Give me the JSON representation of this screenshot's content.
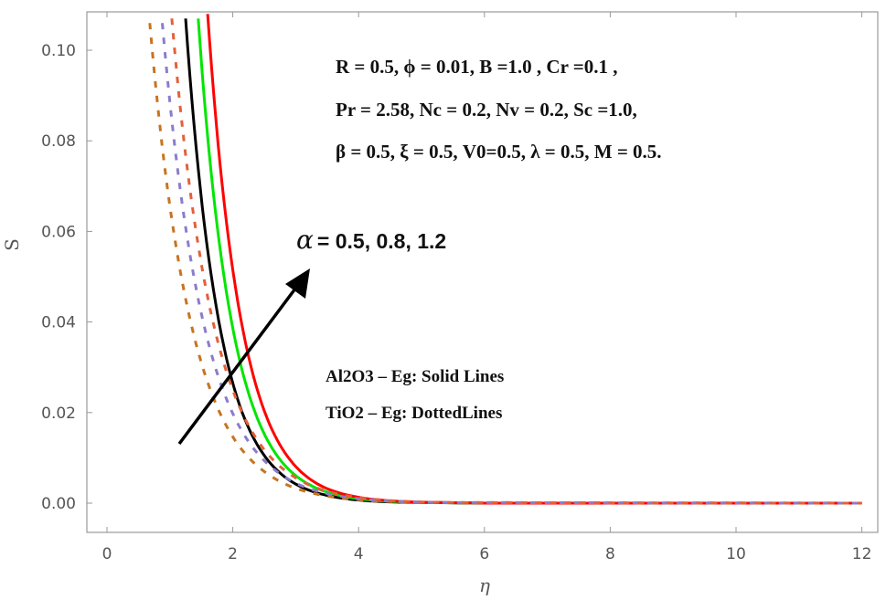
{
  "chart_data": {
    "type": "line",
    "title": "",
    "xlabel": "η",
    "ylabel": "S",
    "xlim": [
      -0.3,
      12.2
    ],
    "ylim": [
      -0.006,
      0.11
    ],
    "xticks": [
      0,
      2,
      4,
      6,
      8,
      10,
      12
    ],
    "xtick_labels": [
      "0",
      "2",
      "4",
      "6",
      "8",
      "10",
      "12"
    ],
    "yticks": [
      0.0,
      0.02,
      0.04,
      0.06,
      0.08,
      0.1
    ],
    "ytick_labels": [
      "0.00",
      "0.02",
      "0.04",
      "0.06",
      "0.08",
      "0.10"
    ],
    "grid": false,
    "series": [
      {
        "name": "Al2O3-Eg α=0.5",
        "style": "solid",
        "color": "#000000",
        "x": [
          1.25,
          1.65,
          2.15,
          2.65,
          3.15,
          3.65,
          4.65,
          6,
          12
        ],
        "y": [
          0.107,
          0.051,
          0.02,
          0.008,
          0.0032,
          0.0013,
          0.0002,
          0,
          0
        ]
      },
      {
        "name": "Al2O3-Eg α=0.8",
        "style": "solid",
        "color": "#00e600",
        "x": [
          1.45,
          1.85,
          2.35,
          2.85,
          3.35,
          3.85,
          4.85,
          6,
          12
        ],
        "y": [
          0.107,
          0.051,
          0.0202,
          0.008,
          0.0032,
          0.0013,
          0.0002,
          0,
          0
        ]
      },
      {
        "name": "Al2O3-Eg α=1.2",
        "style": "solid",
        "color": "#ff0000",
        "x": [
          1.6,
          2.0,
          2.5,
          3.0,
          3.5,
          4.0,
          5.0,
          6,
          12
        ],
        "y": [
          0.108,
          0.0515,
          0.0204,
          0.0081,
          0.0032,
          0.0013,
          0.0002,
          0,
          0
        ]
      },
      {
        "name": "TiO2-Eg α=0.5",
        "style": "dashed",
        "color": "#c8741f",
        "x": [
          0.68,
          1.08,
          1.58,
          2.08,
          2.58,
          3.08,
          4.08,
          5.08,
          12
        ],
        "y": [
          0.106,
          0.0582,
          0.0275,
          0.013,
          0.0062,
          0.0029,
          0.00065,
          0.00014,
          0
        ]
      },
      {
        "name": "TiO2-Eg α=0.8",
        "style": "dashed",
        "color": "#8c7ccc",
        "x": [
          0.88,
          1.28,
          1.78,
          2.28,
          2.78,
          3.28,
          4.28,
          5.28,
          12
        ],
        "y": [
          0.106,
          0.0582,
          0.0275,
          0.013,
          0.0062,
          0.0029,
          0.00065,
          0.00014,
          0
        ]
      },
      {
        "name": "TiO2-Eg α=1.2",
        "style": "dashed",
        "color": "#e4603a",
        "x": [
          1.03,
          1.43,
          1.93,
          2.43,
          2.93,
          3.43,
          4.43,
          5.43,
          12
        ],
        "y": [
          0.107,
          0.0587,
          0.0277,
          0.0131,
          0.0062,
          0.0029,
          0.00065,
          0.00014,
          0
        ]
      }
    ],
    "annotations": {
      "params": [
        "R = 0.5, ϕ = 0.01, B =1.0 , Cr =0.1 ,",
        "Pr = 2.58, Nc = 0.2, Nv = 0.2, Sc =1.0,",
        "β = 0.5, ξ = 0.5,  V0=0.5, λ = 0.5, M = 0.5."
      ],
      "alpha_symbol": "α",
      "alpha_values": "= 0.5, 0.8, 1.2",
      "legend_solid": "Al2O3 – Eg: Solid Lines",
      "legend_dotted": "TiO2 – Eg: DottedLines"
    }
  }
}
